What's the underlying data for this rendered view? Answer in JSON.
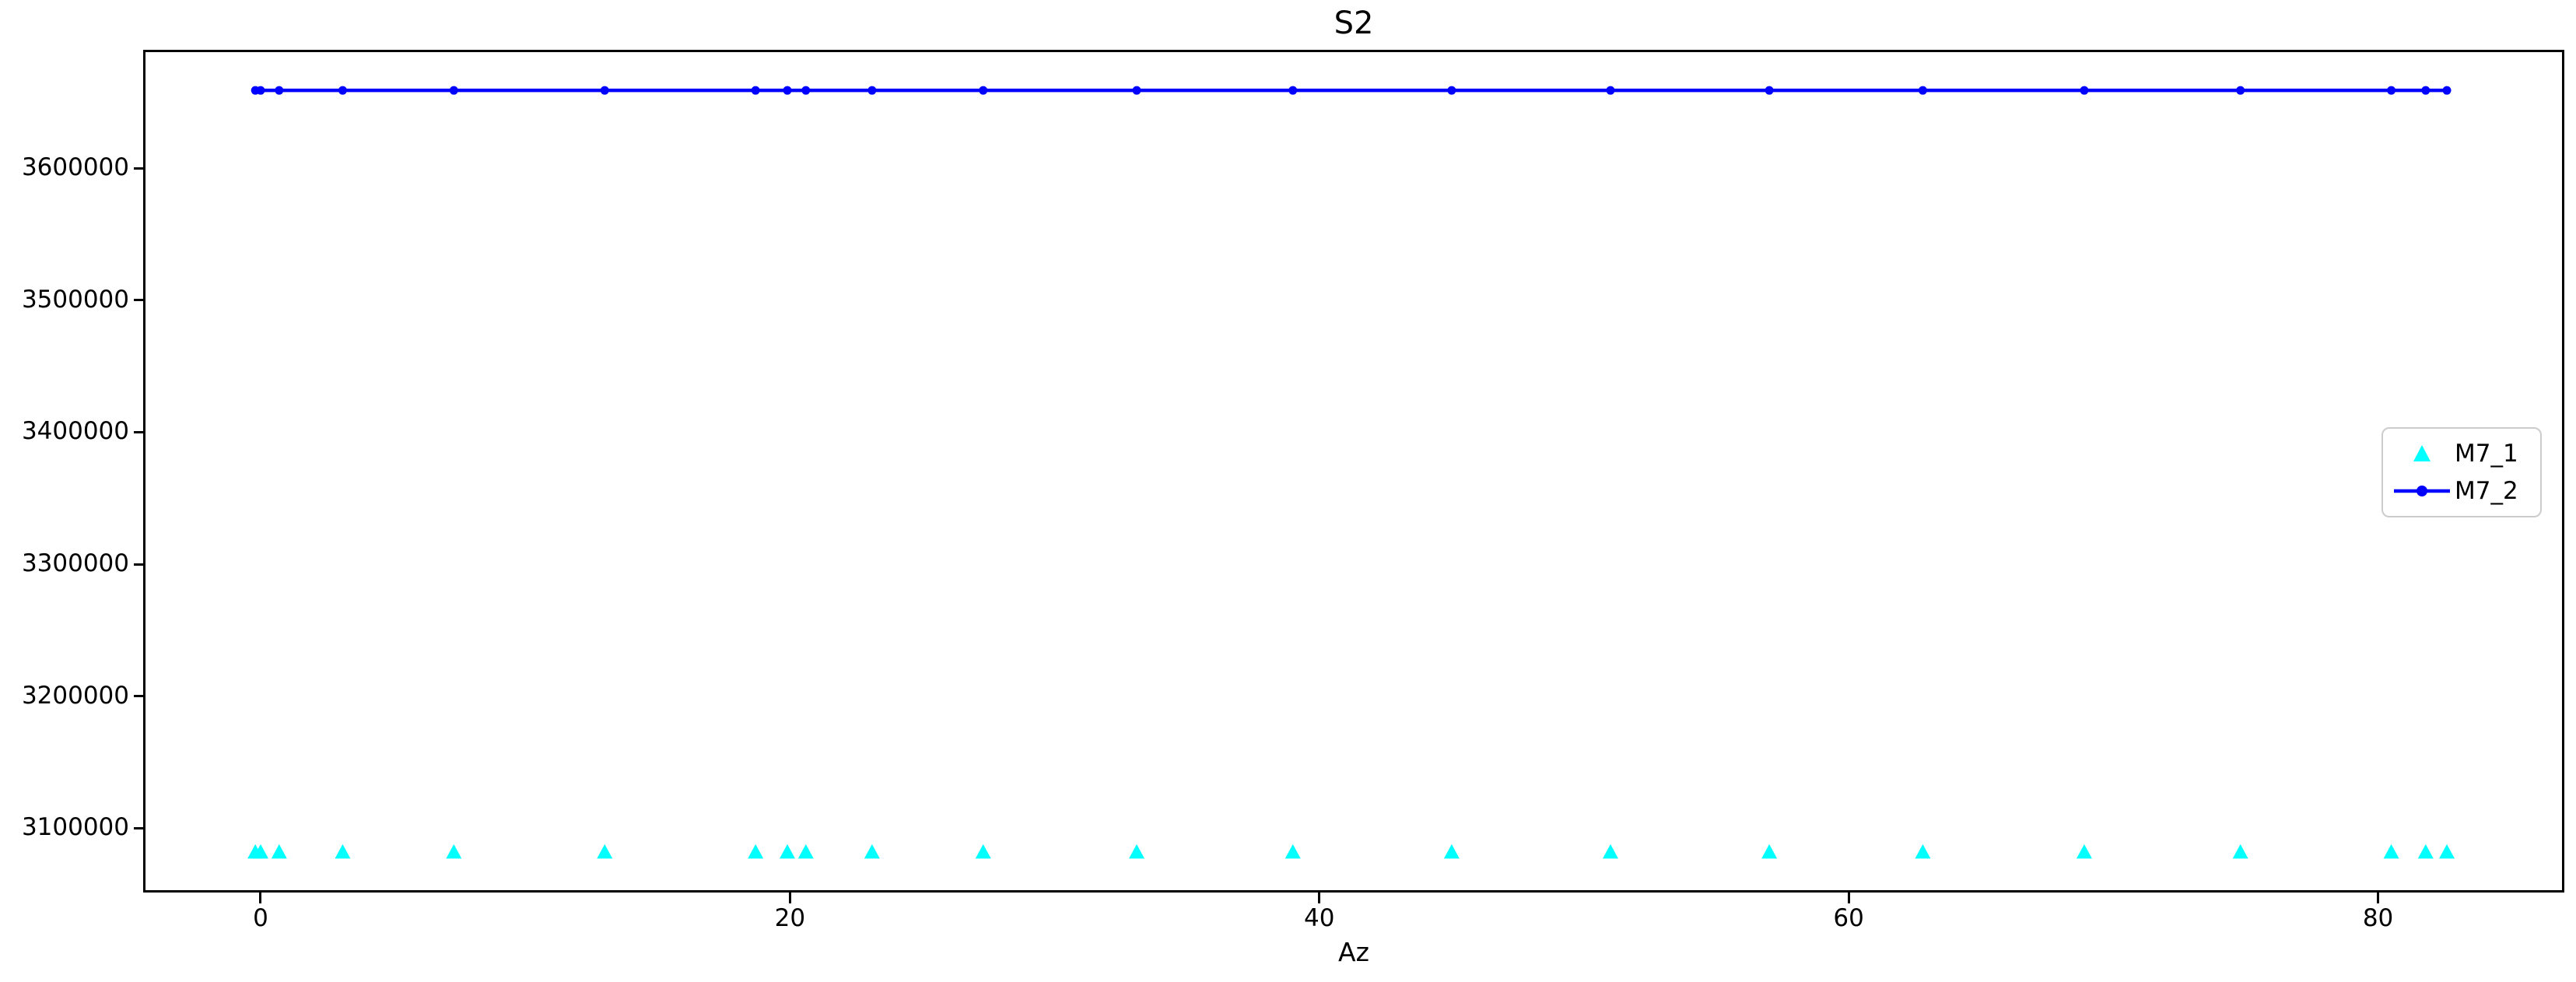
{
  "figure": {
    "title": "S2",
    "x_axis_label": "Az"
  },
  "chart_data": {
    "type": "line",
    "title": "S2",
    "xlabel": "Az",
    "ylabel": "",
    "x": [
      -0.2,
      0.0,
      0.7,
      3.1,
      7.3,
      13.0,
      18.7,
      19.9,
      20.6,
      23.1,
      27.3,
      33.1,
      39.0,
      45.0,
      51.0,
      57.0,
      62.8,
      68.9,
      74.8,
      80.5,
      81.8,
      82.6
    ],
    "series": [
      {
        "name": "M7_1",
        "type": "scatter",
        "marker": "triangle",
        "color": "#00ffff",
        "values": [
          3082000,
          3082000,
          3082000,
          3082000,
          3082000,
          3082000,
          3082000,
          3082000,
          3082000,
          3082000,
          3082000,
          3082000,
          3082000,
          3082000,
          3082000,
          3082000,
          3082000,
          3082000,
          3082000,
          3082000,
          3082000,
          3082000
        ]
      },
      {
        "name": "M7_2",
        "type": "line",
        "marker": "circle",
        "color": "#0000ff",
        "values": [
          3659000,
          3659000,
          3659000,
          3659000,
          3659000,
          3659000,
          3659000,
          3659000,
          3659000,
          3659000,
          3659000,
          3659000,
          3659000,
          3659000,
          3659000,
          3659000,
          3659000,
          3659000,
          3659000,
          3659000,
          3659000,
          3659000
        ]
      }
    ],
    "xlim": [
      -4.35,
      86.95
    ],
    "ylim": [
      3053000,
      3688000
    ],
    "xticks": [
      0,
      20,
      40,
      60,
      80
    ],
    "yticks": [
      3100000,
      3200000,
      3300000,
      3400000,
      3500000,
      3600000
    ],
    "grid": false,
    "legend": {
      "position": "center right",
      "entries": [
        "M7_1",
        "M7_2"
      ]
    }
  }
}
